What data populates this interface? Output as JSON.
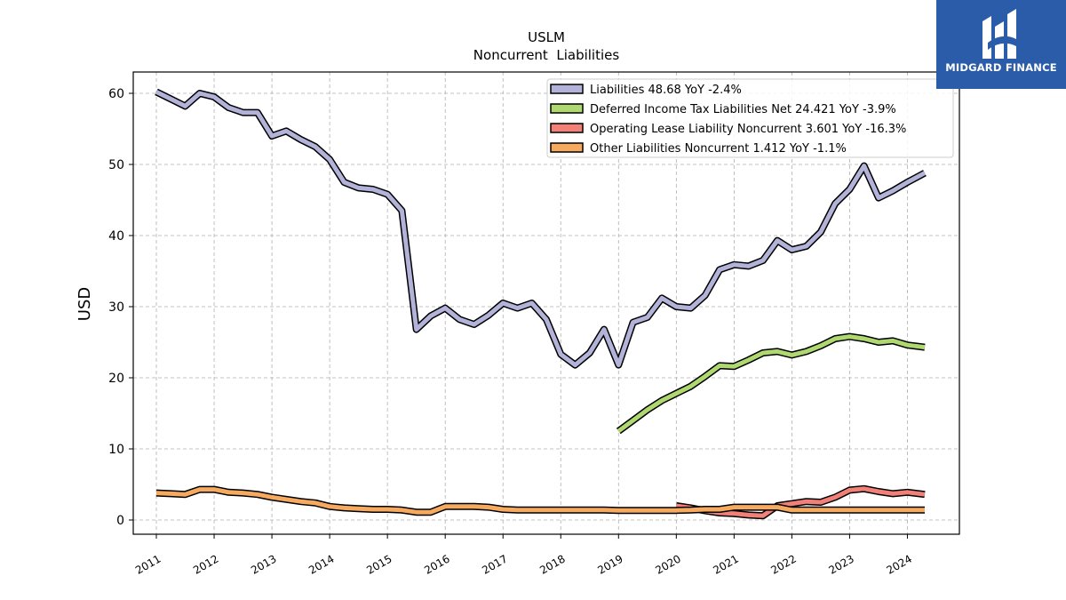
{
  "logo": {
    "text": "MIDGARD FINANCE"
  },
  "chart_data": {
    "type": "line",
    "title": "USLM",
    "subtitle": "Noncurrent  Liabilities",
    "ylabel": "USD",
    "xlabel": "",
    "ylim": [
      -2,
      63
    ],
    "yticks": [
      0,
      10,
      20,
      30,
      40,
      50,
      60
    ],
    "xlim": [
      2010.6,
      2024.9
    ],
    "xticks": [
      "2011",
      "2012",
      "2013",
      "2014",
      "2015",
      "2016",
      "2017",
      "2018",
      "2019",
      "2020",
      "2021",
      "2022",
      "2023",
      "2024"
    ],
    "grid": true,
    "legend_position": "top-right",
    "series": [
      {
        "name": "Liabilities  48.68 YoY -2.4%",
        "color": "#b3b3d9",
        "x": [
          2011.0,
          2011.25,
          2011.5,
          2011.75,
          2012.0,
          2012.25,
          2012.5,
          2012.75,
          2013.0,
          2013.25,
          2013.5,
          2013.75,
          2014.0,
          2014.25,
          2014.5,
          2014.75,
          2015.0,
          2015.25,
          2015.5,
          2015.75,
          2016.0,
          2016.25,
          2016.5,
          2016.75,
          2017.0,
          2017.25,
          2017.5,
          2017.75,
          2018.0,
          2018.25,
          2018.5,
          2018.75,
          2019.0,
          2019.25,
          2019.5,
          2019.75,
          2020.0,
          2020.25,
          2020.5,
          2020.75,
          2021.0,
          2021.25,
          2021.5,
          2021.75,
          2022.0,
          2022.25,
          2022.5,
          2022.75,
          2023.0,
          2023.25,
          2023.5,
          2023.75,
          2024.0,
          2024.3
        ],
        "values": [
          60.2,
          59.2,
          58.2,
          60.0,
          59.5,
          58.0,
          57.3,
          57.3,
          54.0,
          54.7,
          53.5,
          52.5,
          50.7,
          47.5,
          46.7,
          46.5,
          45.8,
          43.5,
          26.8,
          28.7,
          29.8,
          28.2,
          27.5,
          28.8,
          30.5,
          29.8,
          30.5,
          28.2,
          23.3,
          21.8,
          23.5,
          26.8,
          21.8,
          27.8,
          28.5,
          31.2,
          30.0,
          29.8,
          31.6,
          35.2,
          35.9,
          35.7,
          36.5,
          39.3,
          38.0,
          38.5,
          40.5,
          44.5,
          46.5,
          49.8,
          45.3,
          46.3,
          47.5,
          48.8
        ]
      },
      {
        "name": "Deferred Income Tax Liabilities Net  24.421 YoY -3.9%",
        "color": "#b0d870",
        "x": [
          2019.0,
          2019.25,
          2019.5,
          2019.75,
          2020.0,
          2020.25,
          2020.5,
          2020.75,
          2021.0,
          2021.25,
          2021.5,
          2021.75,
          2022.0,
          2022.25,
          2022.5,
          2022.75,
          2023.0,
          2023.25,
          2023.5,
          2023.75,
          2024.0,
          2024.3
        ],
        "values": [
          12.5,
          14.0,
          15.5,
          16.8,
          17.8,
          18.8,
          20.2,
          21.7,
          21.6,
          22.5,
          23.5,
          23.7,
          23.2,
          23.7,
          24.5,
          25.5,
          25.8,
          25.5,
          25.0,
          25.2,
          24.6,
          24.3
        ]
      },
      {
        "name": "Operating Lease Liability Noncurrent  3.601 YoY -16.3%",
        "color": "#f08078",
        "x": [
          2020.0,
          2020.25,
          2020.5,
          2020.75,
          2021.0,
          2021.25,
          2021.5,
          2021.75,
          2022.0,
          2022.25,
          2022.5,
          2022.75,
          2023.0,
          2023.25,
          2023.5,
          2023.75,
          2024.0,
          2024.3
        ],
        "values": [
          2.0,
          1.7,
          1.3,
          1.0,
          0.9,
          0.7,
          0.6,
          2.0,
          2.3,
          2.6,
          2.5,
          3.2,
          4.2,
          4.4,
          4.0,
          3.7,
          3.9,
          3.6
        ]
      },
      {
        "name": "Other Liabilities Noncurrent  1.412 YoY -1.1%",
        "color": "#f5aa60",
        "x": [
          2011.0,
          2011.25,
          2011.5,
          2011.75,
          2012.0,
          2012.25,
          2012.5,
          2012.75,
          2013.0,
          2013.25,
          2013.5,
          2013.75,
          2014.0,
          2014.25,
          2014.5,
          2014.75,
          2015.0,
          2015.25,
          2015.5,
          2015.75,
          2016.0,
          2016.25,
          2016.5,
          2016.75,
          2017.0,
          2017.25,
          2017.5,
          2017.75,
          2018.0,
          2018.25,
          2018.5,
          2018.75,
          2019.0,
          2019.25,
          2019.5,
          2019.75,
          2020.0,
          2020.25,
          2020.5,
          2020.75,
          2021.0,
          2021.25,
          2021.5,
          2021.75,
          2022.0,
          2022.25,
          2022.5,
          2022.75,
          2023.0,
          2023.25,
          2023.5,
          2023.75,
          2024.0,
          2024.3
        ],
        "values": [
          3.8,
          3.7,
          3.6,
          4.3,
          4.3,
          3.9,
          3.8,
          3.6,
          3.2,
          2.9,
          2.6,
          2.4,
          1.9,
          1.7,
          1.6,
          1.5,
          1.5,
          1.4,
          1.1,
          1.1,
          1.9,
          1.9,
          1.9,
          1.8,
          1.5,
          1.4,
          1.4,
          1.4,
          1.4,
          1.4,
          1.4,
          1.4,
          1.35,
          1.35,
          1.35,
          1.35,
          1.35,
          1.4,
          1.5,
          1.5,
          1.8,
          1.8,
          1.8,
          1.8,
          1.4,
          1.4,
          1.4,
          1.4,
          1.4,
          1.4,
          1.4,
          1.4,
          1.4,
          1.4
        ]
      }
    ]
  }
}
